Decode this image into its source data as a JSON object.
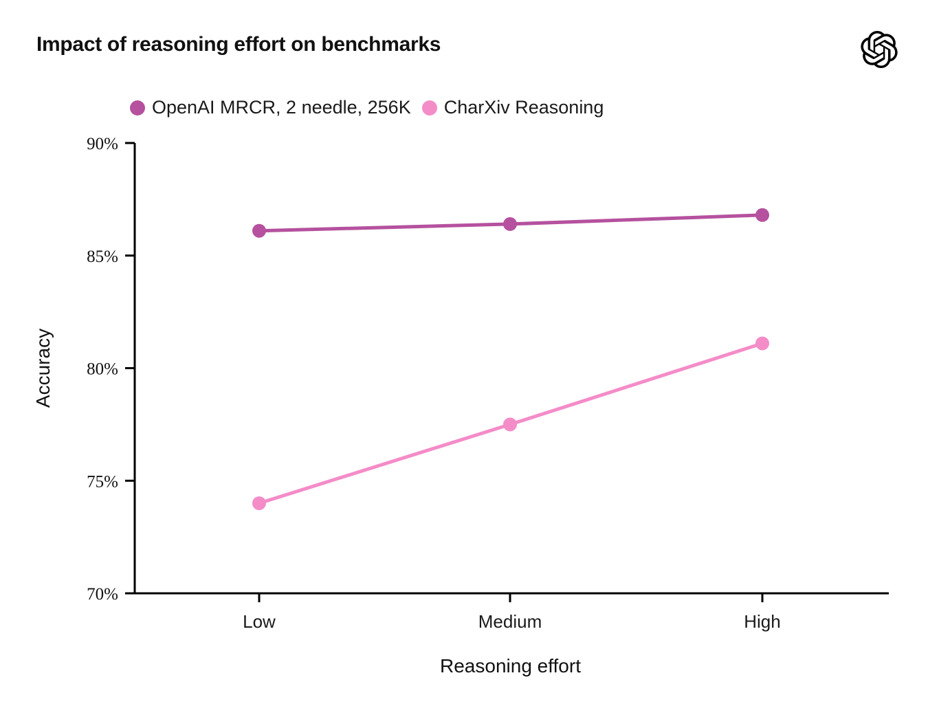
{
  "header": {
    "title": "Impact of reasoning effort on benchmarks",
    "logo": "openai-logo-icon"
  },
  "chart_data": {
    "type": "line",
    "title": "Impact of reasoning effort on benchmarks",
    "categories": [
      "Low",
      "Medium",
      "High"
    ],
    "series": [
      {
        "name": "OpenAI MRCR, 2 needle, 256K",
        "color": "#b5519e",
        "values": [
          86.1,
          86.4,
          86.8
        ]
      },
      {
        "name": "CharXiv Reasoning",
        "color": "#f48cc8",
        "values": [
          74.0,
          77.5,
          81.1
        ]
      }
    ],
    "xlabel": "Reasoning effort",
    "ylabel": "Accuracy",
    "ylim": [
      70,
      90
    ],
    "yticks": [
      70,
      75,
      80,
      85,
      90
    ],
    "ytick_suffix": "%",
    "legend_position": "top-left",
    "grid": false,
    "axis_color": "#000000",
    "marker": "circle",
    "marker_radius": 10,
    "line_width": 5
  }
}
